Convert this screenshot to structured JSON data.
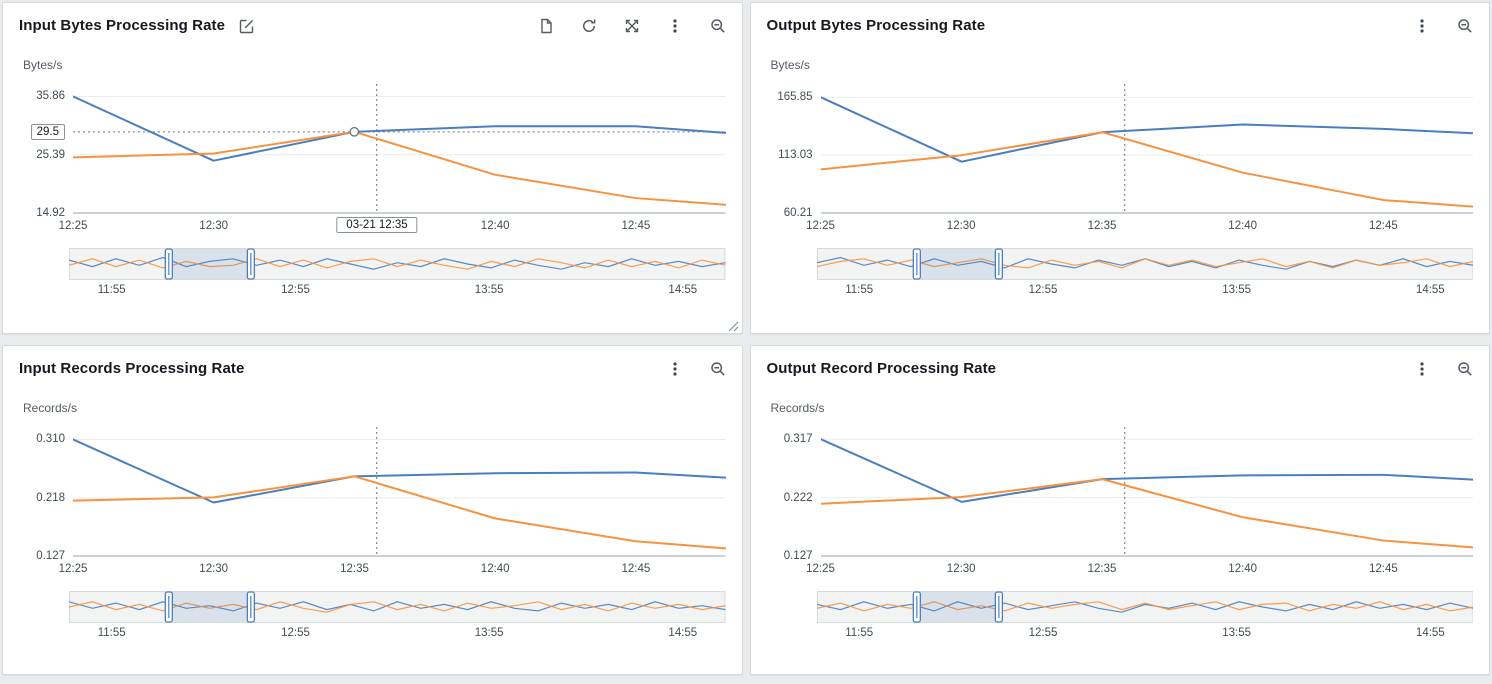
{
  "colors": {
    "blue": "#4a7ebf",
    "orange": "#f79240",
    "grid": "#eaeded",
    "axis": "#9aa5a8",
    "crosshair": "#687078",
    "overview_bg": "#f2f3f3",
    "overview_border": "#d5dbdb"
  },
  "icons": {
    "edit": "edit-icon",
    "document": "document-icon",
    "refresh": "refresh-icon",
    "expand": "expand-icon",
    "menu": "kebab-menu-icon",
    "zoom_out": "zoom-out-icon"
  },
  "chart_data": [
    {
      "type": "line",
      "title": "Input Bytes Processing Rate",
      "unit": "Bytes/s",
      "ylim": [
        14.92,
        37.0
      ],
      "y_ticks": {
        "values": [
          35.86,
          25.39,
          14.92
        ],
        "labels": [
          "35.86",
          "25.39",
          "14.92"
        ]
      },
      "xlim": [
        0,
        23.2
      ],
      "x_ticks": {
        "values": [
          0,
          5,
          10,
          15,
          20
        ],
        "labels": [
          "12:25",
          "12:30",
          "12:35",
          "12:40",
          "12:45"
        ]
      },
      "x_minutes": [
        0,
        5,
        10,
        15,
        20,
        23.2
      ],
      "series": {
        "blue": [
          35.86,
          24.3,
          29.5,
          30.5,
          30.5,
          29.3
        ],
        "orange": [
          24.9,
          25.6,
          29.5,
          21.8,
          17.6,
          16.4
        ]
      },
      "crosshair_x": 10.8,
      "hover": {
        "y_value": 29.5,
        "y_label": "29.5",
        "x_label": "03-21 12:35",
        "point_x": 10,
        "point_y": 29.5
      },
      "overview": {
        "brush": [
          0.152,
          0.277
        ],
        "labels": [
          {
            "f": 0.065,
            "label": "11:55"
          },
          {
            "f": 0.345,
            "label": "12:55"
          },
          {
            "f": 0.64,
            "label": "13:55"
          },
          {
            "f": 0.935,
            "label": "14:55"
          }
        ],
        "blue": [
          0.35,
          0.6,
          0.3,
          0.55,
          0.25,
          0.6,
          0.4,
          0.3,
          0.55,
          0.35,
          0.6,
          0.3,
          0.5,
          0.7,
          0.45,
          0.6,
          0.3,
          0.5,
          0.65,
          0.35,
          0.55,
          0.7,
          0.45,
          0.6,
          0.3,
          0.55,
          0.4,
          0.6,
          0.45
        ],
        "orange": [
          0.55,
          0.3,
          0.6,
          0.35,
          0.65,
          0.4,
          0.6,
          0.55,
          0.3,
          0.6,
          0.35,
          0.65,
          0.4,
          0.3,
          0.6,
          0.35,
          0.55,
          0.7,
          0.4,
          0.6,
          0.3,
          0.45,
          0.65,
          0.35,
          0.6,
          0.4,
          0.65,
          0.35,
          0.55
        ]
      }
    },
    {
      "type": "line",
      "title": "Output Bytes Processing Rate",
      "unit": "Bytes/s",
      "ylim": [
        60.21,
        172.5
      ],
      "y_ticks": {
        "values": [
          165.85,
          113.03,
          60.21
        ],
        "labels": [
          "165.85",
          "113.03",
          "60.21"
        ]
      },
      "xlim": [
        0,
        23.2
      ],
      "x_ticks": {
        "values": [
          0,
          5,
          10,
          15,
          20
        ],
        "labels": [
          "12:25",
          "12:30",
          "12:35",
          "12:40",
          "12:45"
        ]
      },
      "x_minutes": [
        0,
        5,
        10,
        15,
        20,
        23.2
      ],
      "series": {
        "blue": [
          165.85,
          107,
          134,
          141,
          137,
          133
        ],
        "orange": [
          100,
          113,
          134,
          97,
          72,
          66
        ]
      },
      "crosshair_x": 10.8,
      "overview": {
        "brush": [
          0.152,
          0.277
        ],
        "labels": [
          {
            "f": 0.065,
            "label": "11:55"
          },
          {
            "f": 0.345,
            "label": "12:55"
          },
          {
            "f": 0.64,
            "label": "13:55"
          },
          {
            "f": 0.935,
            "label": "14:55"
          }
        ],
        "blue": [
          0.45,
          0.25,
          0.55,
          0.35,
          0.6,
          0.3,
          0.55,
          0.4,
          0.65,
          0.3,
          0.5,
          0.65,
          0.35,
          0.55,
          0.3,
          0.6,
          0.4,
          0.65,
          0.35,
          0.55,
          0.7,
          0.4,
          0.6,
          0.35,
          0.55,
          0.3,
          0.6,
          0.4,
          0.55
        ],
        "orange": [
          0.6,
          0.4,
          0.3,
          0.55,
          0.35,
          0.6,
          0.45,
          0.3,
          0.55,
          0.65,
          0.35,
          0.55,
          0.4,
          0.65,
          0.3,
          0.55,
          0.35,
          0.6,
          0.45,
          0.3,
          0.6,
          0.4,
          0.65,
          0.35,
          0.55,
          0.45,
          0.3,
          0.6,
          0.4
        ]
      }
    },
    {
      "type": "line",
      "title": "Input Records Processing Rate",
      "unit": "Records/s",
      "ylim": [
        0.127,
        0.32
      ],
      "y_ticks": {
        "values": [
          0.31,
          0.218,
          0.127
        ],
        "labels": [
          "0.310",
          "0.218",
          "0.127"
        ]
      },
      "xlim": [
        0,
        23.2
      ],
      "x_ticks": {
        "values": [
          0,
          5,
          10,
          15,
          20
        ],
        "labels": [
          "12:25",
          "12:30",
          "12:35",
          "12:40",
          "12:45"
        ]
      },
      "x_minutes": [
        0,
        5,
        10,
        15,
        20,
        23.2
      ],
      "series": {
        "blue": [
          0.31,
          0.211,
          0.252,
          0.257,
          0.258,
          0.25
        ],
        "orange": [
          0.214,
          0.219,
          0.252,
          0.186,
          0.15,
          0.139
        ]
      },
      "crosshair_x": 10.8,
      "overview": {
        "brush": [
          0.152,
          0.277
        ],
        "labels": [
          {
            "f": 0.065,
            "label": "11:55"
          },
          {
            "f": 0.345,
            "label": "12:55"
          },
          {
            "f": 0.64,
            "label": "13:55"
          },
          {
            "f": 0.935,
            "label": "14:55"
          }
        ],
        "blue": [
          0.3,
          0.55,
          0.35,
          0.6,
          0.3,
          0.55,
          0.45,
          0.65,
          0.35,
          0.55,
          0.3,
          0.6,
          0.4,
          0.65,
          0.3,
          0.55,
          0.4,
          0.6,
          0.3,
          0.55,
          0.65,
          0.35,
          0.55,
          0.4,
          0.6,
          0.3,
          0.55,
          0.45,
          0.6
        ],
        "orange": [
          0.5,
          0.3,
          0.6,
          0.4,
          0.65,
          0.35,
          0.55,
          0.4,
          0.6,
          0.3,
          0.55,
          0.7,
          0.4,
          0.3,
          0.6,
          0.4,
          0.65,
          0.35,
          0.55,
          0.45,
          0.3,
          0.6,
          0.4,
          0.65,
          0.35,
          0.55,
          0.4,
          0.6,
          0.45
        ]
      }
    },
    {
      "type": "line",
      "title": "Output Record Processing Rate",
      "unit": "Records/s",
      "ylim": [
        0.127,
        0.327
      ],
      "y_ticks": {
        "values": [
          0.317,
          0.222,
          0.127
        ],
        "labels": [
          "0.317",
          "0.222",
          "0.127"
        ]
      },
      "xlim": [
        0,
        23.2
      ],
      "x_ticks": {
        "values": [
          0,
          5,
          10,
          15,
          20
        ],
        "labels": [
          "12:25",
          "12:30",
          "12:35",
          "12:40",
          "12:45"
        ]
      },
      "x_minutes": [
        0,
        5,
        10,
        15,
        20,
        23.2
      ],
      "series": {
        "blue": [
          0.317,
          0.215,
          0.252,
          0.258,
          0.259,
          0.251
        ],
        "orange": [
          0.212,
          0.223,
          0.252,
          0.19,
          0.152,
          0.141
        ]
      },
      "crosshair_x": 10.8,
      "overview": {
        "brush": [
          0.152,
          0.277
        ],
        "labels": [
          {
            "f": 0.065,
            "label": "11:55"
          },
          {
            "f": 0.345,
            "label": "12:55"
          },
          {
            "f": 0.64,
            "label": "13:55"
          },
          {
            "f": 0.935,
            "label": "14:55"
          }
        ],
        "blue": [
          0.4,
          0.6,
          0.3,
          0.55,
          0.4,
          0.65,
          0.3,
          0.55,
          0.35,
          0.6,
          0.45,
          0.3,
          0.55,
          0.7,
          0.4,
          0.55,
          0.35,
          0.6,
          0.3,
          0.5,
          0.65,
          0.4,
          0.6,
          0.3,
          0.55,
          0.4,
          0.6,
          0.35,
          0.55
        ],
        "orange": [
          0.55,
          0.35,
          0.65,
          0.4,
          0.55,
          0.3,
          0.6,
          0.45,
          0.65,
          0.35,
          0.55,
          0.4,
          0.3,
          0.6,
          0.35,
          0.6,
          0.45,
          0.3,
          0.6,
          0.4,
          0.35,
          0.65,
          0.4,
          0.55,
          0.3,
          0.6,
          0.4,
          0.65,
          0.5
        ]
      }
    }
  ]
}
